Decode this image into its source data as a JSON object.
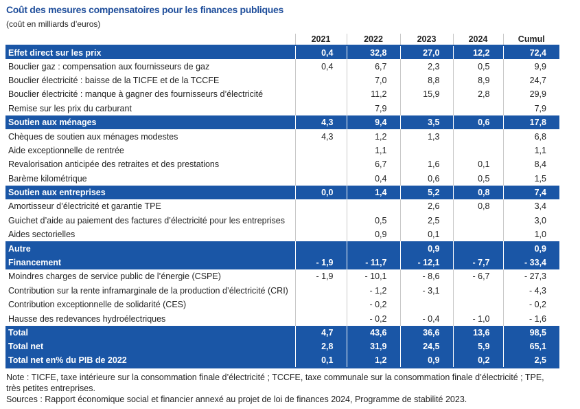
{
  "title": "Coût des mesures compensatoires pour les finances publiques",
  "subtitle": "(coût en milliards d’euros)",
  "table": {
    "columns": [
      "2021",
      "2022",
      "2023",
      "2024",
      "Cumul"
    ],
    "rows": [
      {
        "label": "Effet direct sur les prix",
        "highlight": true,
        "cells": [
          "0,4",
          "32,8",
          "27,0",
          "12,2",
          "72,4"
        ]
      },
      {
        "label": "Bouclier gaz : compensation aux fournisseurs de gaz",
        "cells": [
          "0,4",
          "6,7",
          "2,3",
          "0,5",
          "9,9"
        ]
      },
      {
        "label": "Bouclier électricité : baisse de la TICFE et de la TCCFE",
        "cells": [
          null,
          "7,0",
          "8,8",
          "8,9",
          "24,7"
        ]
      },
      {
        "label": "Bouclier électricité : manque à gagner des fournisseurs d’électricité",
        "cells": [
          null,
          "11,2",
          "15,9",
          "2,8",
          "29,9"
        ]
      },
      {
        "label": "Remise sur les prix du carburant",
        "cells": [
          null,
          "7,9",
          null,
          null,
          "7,9"
        ]
      },
      {
        "label": "Soutien aux ménages",
        "highlight": true,
        "cells": [
          "4,3",
          "9,4",
          "3,5",
          "0,6",
          "17,8"
        ]
      },
      {
        "label": "Chèques de soutien aux ménages modestes",
        "cells": [
          "4,3",
          "1,2",
          "1,3",
          null,
          "6,8"
        ]
      },
      {
        "label": "Aide exceptionnelle de rentrée",
        "cells": [
          null,
          "1,1",
          null,
          null,
          "1,1"
        ]
      },
      {
        "label": "Revalorisation anticipée des retraites et des prestations",
        "cells": [
          null,
          "6,7",
          "1,6",
          "0,1",
          "8,4"
        ]
      },
      {
        "label": "Barème kilométrique",
        "cells": [
          null,
          "0,4",
          "0,6",
          "0,5",
          "1,5"
        ]
      },
      {
        "label": "Soutien aux entreprises",
        "highlight": true,
        "cells": [
          "0,0",
          "1,4",
          "5,2",
          "0,8",
          "7,4"
        ]
      },
      {
        "label": "Amortisseur d’électricité et garantie TPE",
        "cells": [
          null,
          null,
          "2,6",
          "0,8",
          "3,4"
        ]
      },
      {
        "label": "Guichet d’aide au paiement des factures d’électricité pour les entreprises",
        "cells": [
          null,
          "0,5",
          "2,5",
          null,
          "3,0"
        ]
      },
      {
        "label": "Aides sectorielles",
        "cells": [
          null,
          "0,9",
          "0,1",
          null,
          "1,0"
        ]
      },
      {
        "label": "Autre",
        "highlight": true,
        "cells": [
          null,
          null,
          "0,9",
          null,
          "0,9"
        ]
      },
      {
        "label": "Financement",
        "highlight": true,
        "cells": [
          "- 1,9",
          "- 11,7",
          "- 12,1",
          "- 7,7",
          "- 33,4"
        ]
      },
      {
        "label": "Moindres charges de service public de l’énergie (CSPE)",
        "cells": [
          "- 1,9",
          "- 10,1",
          "- 8,6",
          "- 6,7",
          "- 27,3"
        ]
      },
      {
        "label": "Contribution sur la rente inframarginale de la production d’électricité (CRI)",
        "cells": [
          null,
          "- 1,2",
          "- 3,1",
          null,
          "- 4,3"
        ]
      },
      {
        "label": "Contribution exceptionnelle de solidarité (CES)",
        "cells": [
          null,
          "- 0,2",
          null,
          null,
          "- 0,2"
        ]
      },
      {
        "label": "Hausse des redevances hydroélectriques",
        "cells": [
          null,
          "- 0,2",
          "- 0,4",
          "- 1,0",
          "- 1,6"
        ]
      },
      {
        "label": "Total",
        "highlight": true,
        "cells": [
          "4,7",
          "43,6",
          "36,6",
          "13,6",
          "98,5"
        ]
      },
      {
        "label": "Total net",
        "highlight": true,
        "cells": [
          "2,8",
          "31,9",
          "24,5",
          "5,9",
          "65,1"
        ]
      },
      {
        "label": "Total net en% du PIB de 2022",
        "highlight": true,
        "cells": [
          "0,1",
          "1,2",
          "0,9",
          "0,2",
          "2,5"
        ]
      }
    ]
  },
  "note": "Note : TICFE, taxe intérieure sur la consommation finale d’électricité ; TCCFE, taxe communale sur la consommation finale d’électricité ; TPE, très petites entreprises.",
  "sources": "Sources : Rapport économique social et financier annexé au projet de loi de finances 2024, Programme de stabilité 2023."
}
